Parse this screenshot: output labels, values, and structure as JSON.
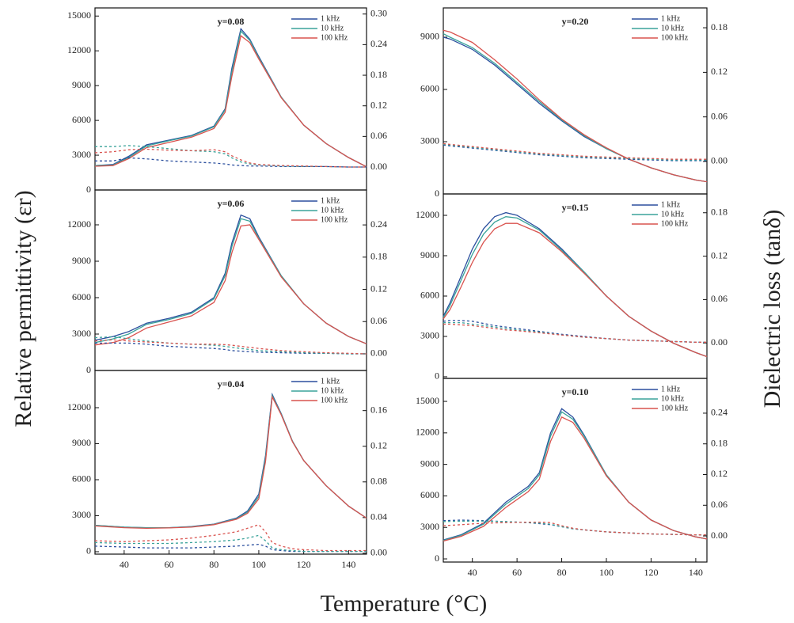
{
  "figure": {
    "ylabel": "Relative permittivity (εr)",
    "y2label": "Dielectric loss (tanδ)",
    "xlabel": "Temperature (°C)"
  },
  "chart_data": [
    {
      "type": "line",
      "title": "y=0.08",
      "xlim": [
        27,
        148
      ],
      "ylim": [
        0,
        15700
      ],
      "yticks": [
        0,
        3000,
        6000,
        9000,
        12000,
        15000
      ],
      "y2lim": [
        -0.045,
        0.312
      ],
      "y2ticks": [
        {
          "value": 0,
          "label": "0.00"
        },
        0.06,
        0.12,
        0.18,
        0.24,
        {
          "value": 0.3,
          "label": "0.30"
        }
      ],
      "x": [
        27,
        35,
        42,
        50,
        60,
        70,
        80,
        85,
        88,
        92,
        96,
        100,
        110,
        120,
        130,
        140,
        148
      ],
      "series": [
        {
          "name": "1 kHz",
          "color": "#2b4f9e",
          "values": [
            2100,
            2200,
            2900,
            3900,
            4300,
            4700,
            5500,
            7000,
            10500,
            13900,
            13000,
            11500,
            8000,
            5600,
            4000,
            2800,
            2000
          ]
        },
        {
          "name": "10 kHz",
          "color": "#3aa39a",
          "values": [
            2100,
            2150,
            2800,
            3800,
            4250,
            4650,
            5450,
            6900,
            10200,
            13700,
            12900,
            11400,
            8000,
            5600,
            4000,
            2800,
            2000
          ]
        },
        {
          "name": "100 kHz",
          "color": "#d9534f",
          "values": [
            2050,
            2100,
            2700,
            3650,
            4100,
            4550,
            5300,
            6700,
            9800,
            13300,
            12700,
            11300,
            7950,
            5600,
            4000,
            2800,
            2000
          ]
        },
        {
          "color": "#2b4f9e",
          "axis": "y2",
          "dash": true,
          "values": [
            0.012,
            0.012,
            0.018,
            0.016,
            0.012,
            0.01,
            0.008,
            0.006,
            0.004,
            0.003,
            0.002,
            0.002,
            0.001,
            0.001,
            0.001,
            0,
            0
          ]
        },
        {
          "color": "#3aa39a",
          "axis": "y2",
          "dash": true,
          "values": [
            0.04,
            0.04,
            0.042,
            0.04,
            0.036,
            0.032,
            0.03,
            0.026,
            0.018,
            0.01,
            0.006,
            0.004,
            0.002,
            0.001,
            0.001,
            0,
            0
          ]
        },
        {
          "color": "#d9534f",
          "axis": "y2",
          "dash": true,
          "values": [
            0.028,
            0.03,
            0.034,
            0.035,
            0.033,
            0.032,
            0.034,
            0.03,
            0.022,
            0.014,
            0.008,
            0.005,
            0.003,
            0.002,
            0.001,
            0,
            0
          ]
        }
      ]
    },
    {
      "type": "line",
      "title": "y=0.06",
      "xlim": [
        27,
        148
      ],
      "ylim": [
        0,
        14870
      ],
      "yticks": [
        0,
        3000,
        6000,
        9000,
        12000
      ],
      "y2lim": [
        -0.031,
        0.305
      ],
      "y2ticks": [
        {
          "value": 0,
          "label": "0.00"
        },
        0.06,
        0.12,
        0.18,
        0.24
      ],
      "x": [
        27,
        35,
        42,
        50,
        60,
        70,
        80,
        85,
        88,
        92,
        96,
        100,
        110,
        120,
        130,
        140,
        148
      ],
      "series": [
        {
          "name": "1 kHz",
          "color": "#2b4f9e",
          "values": [
            2500,
            2800,
            3200,
            3900,
            4300,
            4800,
            6000,
            8000,
            10500,
            12800,
            12500,
            11000,
            7800,
            5500,
            3900,
            2800,
            2200
          ]
        },
        {
          "name": "10 kHz",
          "color": "#3aa39a",
          "values": [
            2300,
            2600,
            3000,
            3800,
            4200,
            4700,
            5900,
            7800,
            10200,
            12500,
            12300,
            10900,
            7800,
            5500,
            3900,
            2800,
            2200
          ]
        },
        {
          "name": "100 kHz",
          "color": "#d9534f",
          "values": [
            2100,
            2300,
            2700,
            3500,
            4000,
            4500,
            5600,
            7400,
            9700,
            11900,
            12000,
            10800,
            7700,
            5500,
            3900,
            2800,
            2200
          ]
        },
        {
          "color": "#2b4f9e",
          "axis": "y2",
          "dash": true,
          "values": [
            0.02,
            0.02,
            0.02,
            0.018,
            0.014,
            0.012,
            0.01,
            0.008,
            0.006,
            0.005,
            0.004,
            0.003,
            0.002,
            0.001,
            0.001,
            0,
            0
          ]
        },
        {
          "color": "#3aa39a",
          "axis": "y2",
          "dash": true,
          "values": [
            0.03,
            0.032,
            0.028,
            0.024,
            0.02,
            0.018,
            0.016,
            0.014,
            0.012,
            0.01,
            0.008,
            0.006,
            0.004,
            0.002,
            0.001,
            0,
            0
          ]
        },
        {
          "color": "#d9534f",
          "axis": "y2",
          "dash": true,
          "values": [
            0.024,
            0.026,
            0.024,
            0.022,
            0.02,
            0.018,
            0.018,
            0.017,
            0.016,
            0.014,
            0.012,
            0.01,
            0.006,
            0.004,
            0.002,
            0.001,
            0
          ]
        }
      ]
    },
    {
      "type": "line",
      "title": "y=0.04",
      "xlim": [
        27,
        148
      ],
      "xticks": [
        40,
        60,
        80,
        100,
        120,
        140
      ],
      "ylim": [
        -200,
        15100
      ],
      "yticks": [
        0,
        3000,
        6000,
        9000,
        12000
      ],
      "y2lim": [
        -0.001,
        0.205
      ],
      "y2ticks": [
        {
          "value": 0,
          "label": "0.00"
        },
        0.04,
        0.08,
        0.12,
        0.16
      ],
      "x": [
        27,
        40,
        50,
        60,
        70,
        80,
        90,
        95,
        100,
        103,
        106,
        110,
        115,
        120,
        130,
        140,
        148
      ],
      "series": [
        {
          "name": "1 kHz",
          "color": "#2b4f9e",
          "values": [
            2200,
            2050,
            2000,
            2000,
            2100,
            2300,
            2800,
            3400,
            4800,
            8000,
            13100,
            11500,
            9200,
            7600,
            5500,
            3800,
            2800
          ]
        },
        {
          "name": "10 kHz",
          "color": "#3aa39a",
          "values": [
            2200,
            2050,
            2000,
            2000,
            2080,
            2280,
            2750,
            3300,
            4600,
            7800,
            13000,
            11450,
            9200,
            7600,
            5500,
            3800,
            2800
          ]
        },
        {
          "name": "100 kHz",
          "color": "#d9534f",
          "values": [
            2150,
            2000,
            1950,
            1980,
            2050,
            2250,
            2700,
            3200,
            4400,
            7500,
            12900,
            11400,
            9150,
            7600,
            5500,
            3800,
            2800
          ]
        },
        {
          "color": "#2b4f9e",
          "axis": "y2",
          "dash": true,
          "values": [
            0.008,
            0.007,
            0.006,
            0.006,
            0.006,
            0.007,
            0.008,
            0.009,
            0.01,
            0.008,
            0.004,
            0.003,
            0.002,
            0.002,
            0.002,
            0.002,
            0.002
          ]
        },
        {
          "color": "#3aa39a",
          "axis": "y2",
          "dash": true,
          "values": [
            0.012,
            0.011,
            0.011,
            0.011,
            0.012,
            0.013,
            0.015,
            0.017,
            0.02,
            0.014,
            0.006,
            0.004,
            0.003,
            0.002,
            0.002,
            0.002,
            0.002
          ]
        },
        {
          "color": "#d9534f",
          "axis": "y2",
          "dash": true,
          "values": [
            0.014,
            0.013,
            0.014,
            0.015,
            0.017,
            0.02,
            0.024,
            0.028,
            0.032,
            0.024,
            0.012,
            0.008,
            0.005,
            0.004,
            0.003,
            0.003,
            0.003
          ]
        }
      ]
    },
    {
      "type": "line",
      "title": "y=0.20",
      "xlim": [
        27,
        145
      ],
      "ylim": [
        0,
        10680
      ],
      "yticks": [
        0,
        3000,
        6000,
        9000
      ],
      "y2lim": [
        -0.0437,
        0.2067
      ],
      "y2ticks": [
        {
          "value": 0,
          "label": "0.00"
        },
        0.06,
        0.12,
        0.18
      ],
      "x": [
        27,
        30,
        40,
        50,
        60,
        70,
        80,
        90,
        100,
        110,
        120,
        130,
        140,
        145
      ],
      "series": [
        {
          "name": "1 kHz",
          "color": "#2b4f9e",
          "values": [
            9000,
            8900,
            8300,
            7400,
            6300,
            5200,
            4200,
            3300,
            2600,
            2000,
            1500,
            1100,
            800,
            700
          ]
        },
        {
          "name": "10 kHz",
          "color": "#3aa39a",
          "values": [
            9200,
            9000,
            8400,
            7500,
            6400,
            5300,
            4250,
            3350,
            2600,
            2000,
            1500,
            1100,
            800,
            700
          ]
        },
        {
          "name": "100 kHz",
          "color": "#d9534f",
          "values": [
            9400,
            9300,
            8700,
            7700,
            6600,
            5400,
            4300,
            3400,
            2650,
            2000,
            1500,
            1100,
            800,
            700
          ]
        },
        {
          "color": "#2b4f9e",
          "axis": "y2",
          "dash": true,
          "values": [
            0.022,
            0.021,
            0.018,
            0.015,
            0.012,
            0.009,
            0.007,
            0.005,
            0.004,
            0.003,
            0.002,
            0.001,
            0.001,
            0.001
          ]
        },
        {
          "color": "#3aa39a",
          "axis": "y2",
          "dash": true,
          "values": [
            0.023,
            0.022,
            0.019,
            0.016,
            0.013,
            0.01,
            0.008,
            0.006,
            0.005,
            0.004,
            0.003,
            0.002,
            0.002,
            0.002
          ]
        },
        {
          "color": "#d9534f",
          "axis": "y2",
          "dash": true,
          "values": [
            0.024,
            0.023,
            0.02,
            0.017,
            0.014,
            0.011,
            0.009,
            0.007,
            0.006,
            0.005,
            0.004,
            0.003,
            0.003,
            0.003
          ]
        }
      ]
    },
    {
      "type": "line",
      "title": "y=0.15",
      "xlim": [
        27,
        145
      ],
      "ylim": [
        -120,
        13590
      ],
      "yticks": [
        0,
        3000,
        6000,
        9000,
        12000
      ],
      "y2lim": [
        -0.049,
        0.206
      ],
      "y2ticks": [
        {
          "value": 0,
          "label": "0.00"
        },
        0.06,
        0.12,
        0.18
      ],
      "x": [
        27,
        30,
        35,
        40,
        45,
        50,
        55,
        60,
        70,
        80,
        90,
        100,
        110,
        120,
        130,
        140,
        145
      ],
      "series": [
        {
          "name": "1 kHz",
          "color": "#2b4f9e",
          "values": [
            4500,
            5500,
            7500,
            9500,
            11000,
            11900,
            12200,
            12000,
            11000,
            9500,
            7800,
            6000,
            4500,
            3400,
            2500,
            1800,
            1500
          ]
        },
        {
          "name": "10 kHz",
          "color": "#3aa39a",
          "values": [
            4400,
            5300,
            7200,
            9100,
            10600,
            11500,
            11900,
            11800,
            10900,
            9400,
            7800,
            6000,
            4500,
            3400,
            2500,
            1800,
            1500
          ]
        },
        {
          "name": "100 kHz",
          "color": "#d9534f",
          "values": [
            4300,
            5000,
            6700,
            8500,
            10000,
            11000,
            11400,
            11400,
            10700,
            9300,
            7700,
            6000,
            4500,
            3400,
            2500,
            1800,
            1500
          ]
        },
        {
          "color": "#2b4f9e",
          "axis": "y2",
          "dash": true,
          "values": [
            0.03,
            0.031,
            0.031,
            0.03,
            0.027,
            0.024,
            0.022,
            0.02,
            0.016,
            0.012,
            0.009,
            0.006,
            0.004,
            0.003,
            0.002,
            0.001,
            0.001
          ]
        },
        {
          "color": "#3aa39a",
          "axis": "y2",
          "dash": true,
          "values": [
            0.028,
            0.028,
            0.028,
            0.026,
            0.024,
            0.022,
            0.02,
            0.018,
            0.015,
            0.011,
            0.008,
            0.006,
            0.004,
            0.003,
            0.002,
            0.001,
            0.001
          ]
        },
        {
          "color": "#d9534f",
          "axis": "y2",
          "dash": true,
          "values": [
            0.026,
            0.026,
            0.025,
            0.024,
            0.022,
            0.02,
            0.018,
            0.017,
            0.014,
            0.011,
            0.008,
            0.006,
            0.004,
            0.003,
            0.002,
            0.001,
            0.001
          ]
        }
      ]
    },
    {
      "type": "line",
      "title": "y=0.10",
      "xlim": [
        27,
        145
      ],
      "xticks": [
        40,
        60,
        80,
        100,
        120,
        140
      ],
      "ylim": [
        -300,
        17190
      ],
      "yticks": [
        0,
        3000,
        6000,
        9000,
        12000,
        15000
      ],
      "y2lim": [
        -0.051,
        0.308
      ],
      "y2ticks": [
        {
          "value": 0,
          "label": "0.00"
        },
        0.06,
        0.12,
        0.18,
        0.24
      ],
      "x": [
        27,
        35,
        45,
        55,
        65,
        70,
        75,
        80,
        85,
        90,
        100,
        110,
        120,
        130,
        140,
        145
      ],
      "series": [
        {
          "name": "1 kHz",
          "color": "#2b4f9e",
          "values": [
            1800,
            2300,
            3400,
            5400,
            6900,
            8200,
            12000,
            14300,
            13500,
            11800,
            8000,
            5400,
            3700,
            2700,
            2100,
            1900
          ]
        },
        {
          "name": "10 kHz",
          "color": "#3aa39a",
          "values": [
            1750,
            2250,
            3300,
            5200,
            6700,
            8000,
            11700,
            14000,
            13300,
            11700,
            8000,
            5400,
            3700,
            2700,
            2100,
            1900
          ]
        },
        {
          "name": "100 kHz",
          "color": "#d9534f",
          "values": [
            1700,
            2150,
            3100,
            4900,
            6400,
            7600,
            11200,
            13500,
            13000,
            11500,
            7900,
            5400,
            3700,
            2700,
            2100,
            1900
          ]
        },
        {
          "color": "#2b4f9e",
          "axis": "y2",
          "dash": true,
          "values": [
            0.03,
            0.031,
            0.03,
            0.028,
            0.026,
            0.024,
            0.022,
            0.018,
            0.014,
            0.012,
            0.008,
            0.006,
            0.004,
            0.003,
            0.002,
            0.002
          ]
        },
        {
          "color": "#3aa39a",
          "axis": "y2",
          "dash": true,
          "values": [
            0.028,
            0.029,
            0.029,
            0.028,
            0.026,
            0.025,
            0.023,
            0.018,
            0.014,
            0.012,
            0.008,
            0.006,
            0.004,
            0.003,
            0.002,
            0.002
          ]
        },
        {
          "color": "#d9534f",
          "axis": "y2",
          "dash": true,
          "values": [
            0.02,
            0.022,
            0.025,
            0.026,
            0.027,
            0.027,
            0.026,
            0.02,
            0.015,
            0.012,
            0.008,
            0.006,
            0.004,
            0.003,
            0.002,
            0.002
          ]
        }
      ]
    }
  ]
}
